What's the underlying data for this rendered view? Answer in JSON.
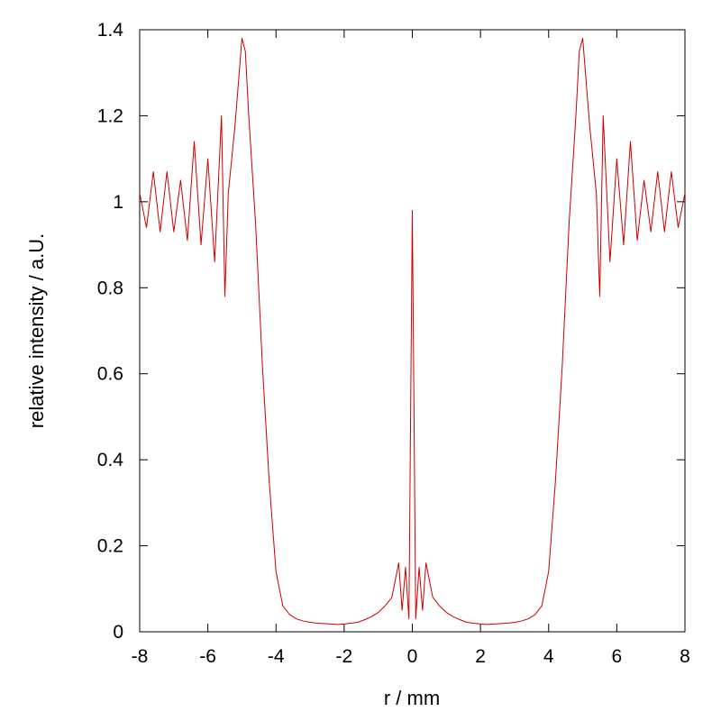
{
  "chart_data": {
    "type": "line",
    "title": "",
    "xlabel": "r / mm",
    "ylabel": "relative intensity / a.U.",
    "xlim": [
      -8,
      8
    ],
    "ylim": [
      0,
      1.4
    ],
    "xticks": [
      -8,
      -6,
      -4,
      -2,
      0,
      2,
      4,
      6,
      8
    ],
    "yticks": [
      0,
      0.2,
      0.4,
      0.6,
      0.8,
      1,
      1.2,
      1.4
    ],
    "xtick_labels": [
      "-8",
      "-6",
      "-4",
      "-2",
      "0",
      "2",
      "4",
      "6",
      "8"
    ],
    "ytick_labels": [
      "0",
      "0.2",
      "0.4",
      "0.6",
      "0.8",
      "1",
      "1.2",
      "1.4"
    ],
    "grid": false,
    "line_color": "#cc0000",
    "series": [
      {
        "x": [
          -8.0,
          -7.8,
          -7.6,
          -7.4,
          -7.2,
          -7.0,
          -6.8,
          -6.6,
          -6.4,
          -6.2,
          -6.0,
          -5.8,
          -5.6,
          -5.5,
          -5.4,
          -5.2,
          -5.0,
          -4.9,
          -4.8,
          -4.6,
          -4.4,
          -4.2,
          -4.0,
          -3.8,
          -3.6,
          -3.4,
          -3.2,
          -3.0,
          -2.8,
          -2.6,
          -2.4,
          -2.2,
          -2.0,
          -1.8,
          -1.6,
          -1.4,
          -1.2,
          -1.0,
          -0.8,
          -0.6,
          -0.4,
          -0.3,
          -0.2,
          -0.1,
          0.0,
          0.1,
          0.2,
          0.3,
          0.4,
          0.6,
          0.8,
          1.0,
          1.2,
          1.4,
          1.6,
          1.8,
          2.0,
          2.2,
          2.4,
          2.6,
          2.8,
          3.0,
          3.2,
          3.4,
          3.6,
          3.8,
          4.0,
          4.2,
          4.4,
          4.6,
          4.8,
          4.9,
          5.0,
          5.2,
          5.4,
          5.5,
          5.6,
          5.8,
          6.0,
          6.2,
          6.4,
          6.6,
          6.8,
          7.0,
          7.2,
          7.4,
          7.6,
          7.8,
          8.0
        ],
        "y": [
          1.02,
          0.94,
          1.07,
          0.93,
          1.07,
          0.93,
          1.05,
          0.91,
          1.14,
          0.9,
          1.1,
          0.86,
          1.2,
          0.78,
          1.02,
          1.18,
          1.38,
          1.35,
          1.2,
          0.95,
          0.62,
          0.35,
          0.14,
          0.06,
          0.04,
          0.03,
          0.025,
          0.022,
          0.02,
          0.019,
          0.018,
          0.017,
          0.018,
          0.02,
          0.022,
          0.028,
          0.035,
          0.045,
          0.06,
          0.08,
          0.16,
          0.05,
          0.15,
          0.03,
          0.98,
          0.03,
          0.15,
          0.05,
          0.16,
          0.08,
          0.06,
          0.045,
          0.035,
          0.028,
          0.022,
          0.02,
          0.018,
          0.017,
          0.018,
          0.019,
          0.02,
          0.022,
          0.025,
          0.03,
          0.04,
          0.06,
          0.14,
          0.35,
          0.62,
          0.95,
          1.2,
          1.35,
          1.38,
          1.18,
          1.02,
          0.78,
          1.2,
          0.86,
          1.1,
          0.9,
          1.14,
          0.91,
          1.05,
          0.93,
          1.07,
          0.93,
          1.07,
          0.94,
          1.02
        ]
      }
    ]
  }
}
